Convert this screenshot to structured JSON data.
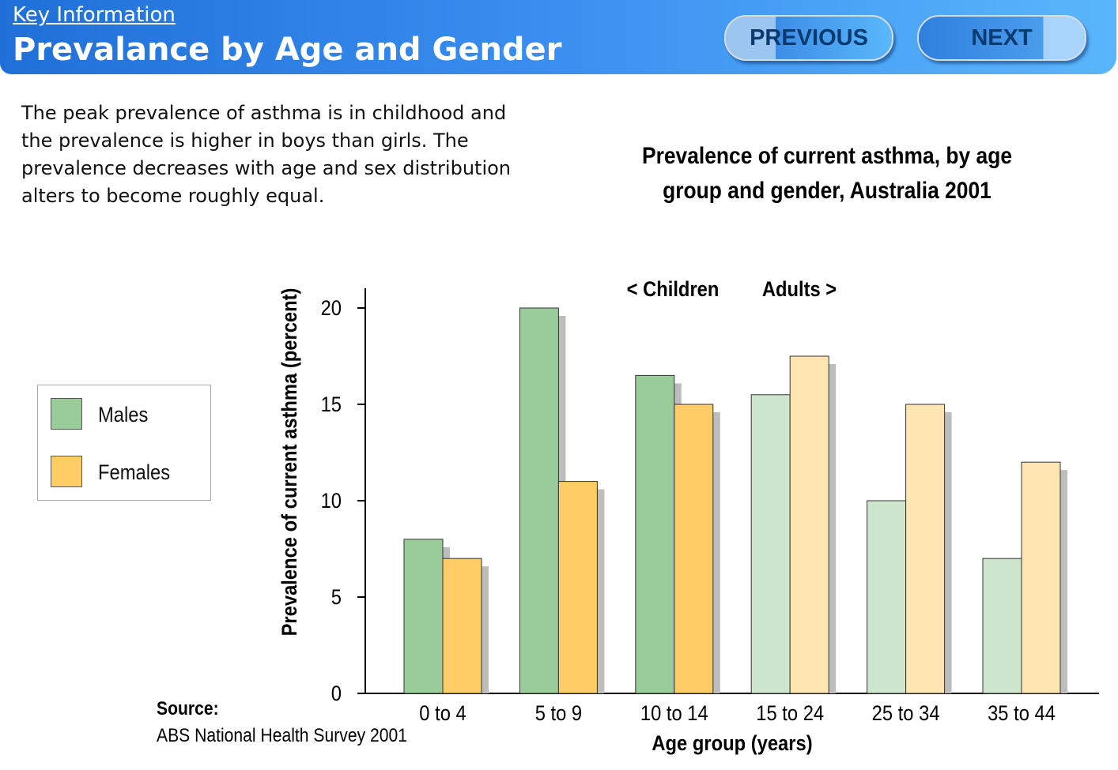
{
  "header": {
    "kicker": "Key Information",
    "title": "Prevalance by Age and Gender",
    "previous_label": "PREVIOUS",
    "next_label": "NEXT"
  },
  "intro_text": "The peak prevalence of asthma is in childhood and the prevalence is higher in boys than girls. The prevalence decreases with age and sex distribution alters to become roughly equal.",
  "source": {
    "label": "Source:",
    "text": "ABS National Health Survey 2001"
  },
  "chart_data": {
    "type": "bar",
    "title": "Prevalence of current asthma, by age group and gender, Australia 2001",
    "xlabel": "Age group (years)",
    "ylabel": "Prevalence of current asthma (percent)",
    "ylim": [
      0,
      20
    ],
    "yticks": [
      0,
      5,
      10,
      15,
      20
    ],
    "categories": [
      "0 to 4",
      "5 to 9",
      "10 to 14",
      "15 to 24",
      "25 to 34",
      "35 to 44"
    ],
    "series": [
      {
        "name": "Males",
        "values": [
          8,
          20,
          16.5,
          15.5,
          10,
          7
        ],
        "color": "#99cc99",
        "adult_color": "#cce5cc"
      },
      {
        "name": "Females",
        "values": [
          7,
          11,
          15,
          17.5,
          15,
          12
        ],
        "color": "#ffcc66",
        "adult_color": "#ffe5b2"
      }
    ],
    "annotations": {
      "children": "< Children",
      "adults": "Adults >"
    },
    "legend_position": "left",
    "grid": false
  }
}
